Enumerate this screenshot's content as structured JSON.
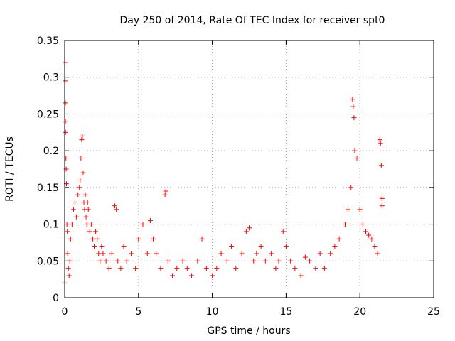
{
  "chart_data": {
    "type": "scatter",
    "title": "Day 250 of 2014, Rate Of TEC Index for receiver spt0",
    "xlabel": "GPS time / hours",
    "ylabel": "ROTI / TECUs",
    "xlim": [
      0,
      25
    ],
    "ylim": [
      0,
      0.35
    ],
    "xticks": [
      0,
      5,
      10,
      15,
      20,
      25
    ],
    "yticks": [
      0,
      0.05,
      0.1,
      0.15,
      0.2,
      0.25,
      0.3,
      0.35
    ],
    "xtick_labels": [
      "0",
      "5",
      "10",
      "15",
      "20",
      "25"
    ],
    "ytick_labels": [
      "0",
      "0.05",
      "0.1",
      "0.15",
      "0.2",
      "0.25",
      "0.3",
      "0.35"
    ],
    "grid": true,
    "marker": "+",
    "color": "#ff0000",
    "series": [
      {
        "x": [
          0.0,
          0.02,
          0.03,
          0.05,
          0.05,
          0.06,
          0.08,
          0.1,
          0.12,
          0.15,
          0.18,
          0.2,
          0.25,
          0.3,
          0.35,
          0.4,
          0.5,
          0.6,
          0.7,
          0.8,
          0.9,
          1.0,
          1.05,
          1.1,
          1.15,
          1.2,
          1.25,
          1.3,
          1.35,
          1.4,
          1.45,
          1.5,
          1.55,
          1.6,
          1.7,
          1.8,
          1.9,
          2.0,
          2.1,
          2.2,
          2.3,
          2.4,
          2.5,
          2.6,
          2.8,
          3.0,
          3.2,
          3.4,
          3.5,
          3.6,
          3.8,
          4.0,
          4.2,
          4.5,
          4.8,
          5.0,
          5.3,
          5.6,
          5.8,
          6.0,
          6.2,
          6.5,
          6.8,
          6.85,
          7.0,
          7.3,
          7.6,
          8.0,
          8.3,
          8.6,
          9.0,
          9.3,
          9.6,
          10.0,
          10.3,
          10.6,
          11.0,
          11.3,
          11.6,
          12.0,
          12.3,
          12.5,
          12.8,
          13.0,
          13.3,
          13.6,
          14.0,
          14.3,
          14.5,
          14.8,
          15.0,
          15.3,
          15.6,
          16.0,
          16.3,
          16.6,
          17.0,
          17.3,
          17.6,
          18.0,
          18.3,
          18.6,
          19.0,
          19.2,
          19.4,
          19.5,
          19.55,
          19.6,
          19.65,
          19.8,
          20.0,
          20.2,
          20.4,
          20.6,
          20.8,
          21.0,
          21.2,
          21.35,
          21.4,
          21.45,
          21.5,
          21.5
        ],
        "y": [
          0.02,
          0.32,
          0.295,
          0.265,
          0.24,
          0.225,
          0.19,
          0.175,
          0.155,
          0.1,
          0.09,
          0.06,
          0.04,
          0.03,
          0.05,
          0.08,
          0.1,
          0.12,
          0.13,
          0.11,
          0.14,
          0.15,
          0.16,
          0.19,
          0.215,
          0.22,
          0.17,
          0.13,
          0.12,
          0.14,
          0.11,
          0.1,
          0.13,
          0.12,
          0.09,
          0.1,
          0.08,
          0.07,
          0.09,
          0.08,
          0.06,
          0.05,
          0.07,
          0.06,
          0.05,
          0.04,
          0.06,
          0.125,
          0.12,
          0.05,
          0.04,
          0.07,
          0.05,
          0.06,
          0.04,
          0.08,
          0.1,
          0.06,
          0.105,
          0.08,
          0.06,
          0.04,
          0.14,
          0.145,
          0.05,
          0.03,
          0.04,
          0.05,
          0.04,
          0.03,
          0.05,
          0.08,
          0.04,
          0.03,
          0.04,
          0.06,
          0.05,
          0.07,
          0.04,
          0.06,
          0.09,
          0.095,
          0.05,
          0.06,
          0.07,
          0.05,
          0.06,
          0.04,
          0.05,
          0.09,
          0.07,
          0.05,
          0.04,
          0.03,
          0.055,
          0.05,
          0.04,
          0.06,
          0.04,
          0.06,
          0.07,
          0.08,
          0.1,
          0.12,
          0.15,
          0.27,
          0.26,
          0.245,
          0.2,
          0.19,
          0.12,
          0.1,
          0.09,
          0.085,
          0.08,
          0.07,
          0.06,
          0.215,
          0.21,
          0.18,
          0.135,
          0.125
        ]
      }
    ]
  }
}
